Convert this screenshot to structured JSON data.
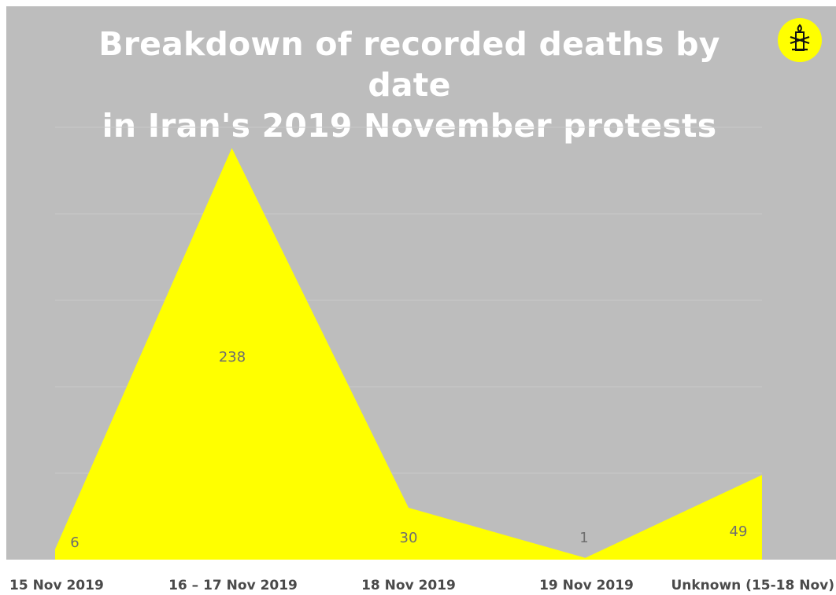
{
  "chart_data": {
    "type": "area",
    "title": "Breakdown of recorded deaths by date in Iran's 2019 November protests",
    "title_lines": [
      "Breakdown of recorded deaths by date",
      "in Iran's 2019 November protests"
    ],
    "categories": [
      "15 Nov 2019",
      "16 – 17 Nov 2019",
      "18 Nov 2019",
      "19 Nov 2019",
      "Unknown (15-18 Nov)"
    ],
    "values": [
      6,
      238,
      30,
      1,
      49
    ],
    "data_labels": [
      "6",
      "238",
      "30",
      "1",
      "49"
    ],
    "ylim": [
      0,
      250
    ],
    "grid": true,
    "legend": "none",
    "colors": {
      "background": "#bdbdbd",
      "area": "#ffff00",
      "gridline": "#c9c9c9",
      "title": "#ffffff",
      "tick_label": "#4a4a4a",
      "data_label": "#6e6e6e"
    },
    "logo": "amnesty-candle-icon"
  }
}
